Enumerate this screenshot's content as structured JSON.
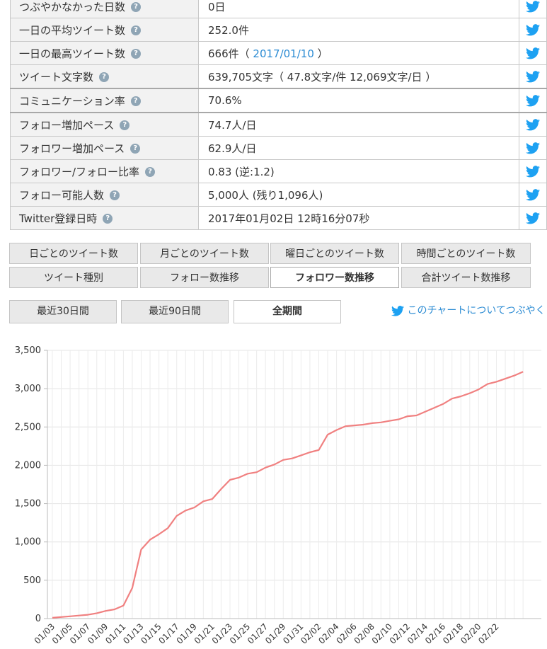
{
  "stats": [
    {
      "label": "つぶやかなかった日数",
      "value": "0日"
    },
    {
      "label": "一日の平均ツイート数",
      "value": "252.0件"
    },
    {
      "label": "一日の最高ツイート数",
      "value_prefix": "666件（ ",
      "value_link": "2017/01/10",
      "value_suffix": " ）"
    },
    {
      "label": "ツイート文字数",
      "value": "639,705文字（ 47.8文字/件 12,069文字/日 ）"
    },
    {
      "label": "コミュニケーション率",
      "value": "70.6%"
    },
    {
      "label": "フォロー増加ペース",
      "value": "74.7人/日"
    },
    {
      "label": "フォロワー増加ペース",
      "value": "62.9人/日"
    },
    {
      "label": "フォロワー/フォロー比率",
      "value": "0.83 (逆:1.2)"
    },
    {
      "label": "フォロー可能人数",
      "value": "5,000人 (残り1,096人)"
    },
    {
      "label": "Twitter登録日時",
      "value": "2017年01月02日 12時16分07秒"
    }
  ],
  "help_glyph": "?",
  "tabs": {
    "daily_tweets": "日ごとのツイート数",
    "monthly_tweets": "月ごとのツイート数",
    "weekday_tweets": "曜日ごとのツイート数",
    "hourly_tweets": "時間ごとのツイート数",
    "tweet_types": "ツイート種別",
    "following_trend": "フォロー数推移",
    "followers_trend": "フォロワー数推移",
    "total_tweets_trend": "合計ツイート数推移"
  },
  "ranges": {
    "last30": "最近30日間",
    "last90": "最近90日間",
    "all": "全期間"
  },
  "tweet_link": "このチャートについてつぶやく",
  "colors": {
    "line": "#f08080",
    "twitter": "#1da1f2",
    "link": "#2b8bd3"
  },
  "chart_data": {
    "type": "line",
    "title": "",
    "xlabel": "",
    "ylabel": "",
    "ylim": [
      0,
      3500
    ],
    "yticks": [
      "0",
      "500",
      "1,000",
      "1,500",
      "2,000",
      "2,500",
      "3,000",
      "3,500"
    ],
    "xticks": [
      "01/03",
      "01/05",
      "01/07",
      "01/09",
      "01/11",
      "01/13",
      "01/15",
      "01/17",
      "01/19",
      "01/21",
      "01/23",
      "01/25",
      "01/27",
      "01/29",
      "01/31",
      "02/02",
      "02/04",
      "02/06",
      "02/08",
      "02/10",
      "02/12",
      "02/14",
      "02/16",
      "02/18",
      "02/20",
      "02/22"
    ],
    "grid": true,
    "series": [
      {
        "name": "",
        "values": [
          10,
          20,
          30,
          40,
          50,
          70,
          100,
          120,
          170,
          400,
          900,
          1030,
          1100,
          1180,
          1340,
          1410,
          1450,
          1530,
          1560,
          1690,
          1810,
          1840,
          1890,
          1910,
          1970,
          2010,
          2070,
          2090,
          2130,
          2170,
          2200,
          2400,
          2460,
          2510,
          2520,
          2530,
          2550,
          2560,
          2580,
          2600,
          2640,
          2650,
          2700,
          2750,
          2800,
          2870,
          2900,
          2940,
          2990,
          3060,
          3090,
          3130,
          3170,
          3220
        ]
      }
    ]
  }
}
